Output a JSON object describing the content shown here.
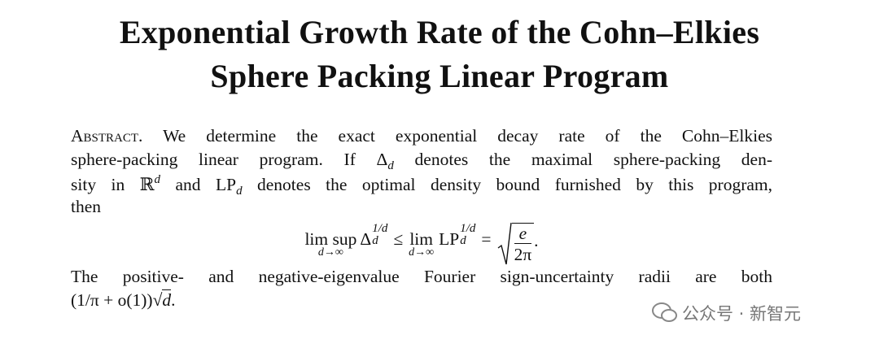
{
  "title": [
    "Exponential Growth Rate of the Cohn–Elkies",
    "Sphere Packing Linear Program"
  ],
  "abstract": {
    "label": "Abstract.",
    "lines": [
      [
        " We determine the exact exponential decay rate of the Cohn–Elkies"
      ],
      [
        "sphere-packing linear program. If ",
        "Δ",
        "d",
        " denotes the maximal sphere-packing den-"
      ],
      [
        "sity in ",
        "ℝ",
        "d",
        " and ",
        "LP",
        "d",
        " denotes the optimal density bound furnished by this program,"
      ],
      [
        "then"
      ]
    ],
    "display": {
      "limsup": "lim sup",
      "limsup_sub": "d→∞",
      "delta": "Δ",
      "delta_sup": "1/d",
      "delta_sub": "d",
      "le": "≤",
      "lim": "lim",
      "lim_sub": "d→∞",
      "lp": "LP",
      "lp_sup": "1/d",
      "lp_sub": "d",
      "eq": "=",
      "numerator": "e",
      "denominator": "2π",
      "period": "."
    },
    "after": [
      [
        "The positive- and negative-eigenvalue Fourier sign-uncertainty radii are both"
      ],
      [
        "(1/π + o(1))",
        "√",
        "d",
        "."
      ]
    ]
  },
  "watermark": "公众号 · 新智元"
}
